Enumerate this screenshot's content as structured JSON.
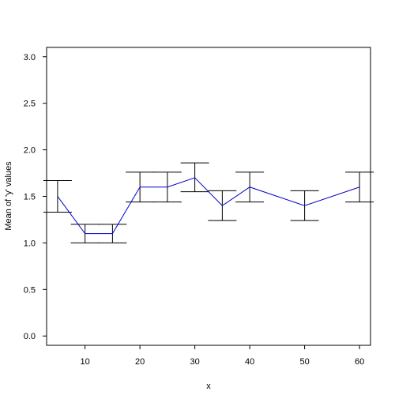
{
  "chart_data": {
    "type": "line",
    "xlabel": "x",
    "ylabel": "Mean of 'y' values",
    "x_ticks": [
      10,
      20,
      30,
      40,
      50,
      60
    ],
    "y_ticks": [
      "0.0",
      "0.5",
      "1.0",
      "1.5",
      "2.0",
      "2.5",
      "3.0"
    ],
    "xlim": [
      3,
      62
    ],
    "ylim": [
      -0.1,
      3.1
    ],
    "line_color": "#0000cc",
    "error_bar_color": "#000000",
    "grid": false,
    "series": [
      {
        "x": [
          5,
          10,
          15,
          20,
          25,
          30,
          35,
          40,
          50,
          60
        ],
        "y": [
          1.5,
          1.1,
          1.1,
          1.6,
          1.6,
          1.7,
          1.4,
          1.6,
          1.4,
          1.6
        ],
        "lower": [
          1.33,
          1.0,
          1.0,
          1.44,
          1.44,
          1.55,
          1.24,
          1.44,
          1.24,
          1.44
        ],
        "upper": [
          1.67,
          1.2,
          1.2,
          1.76,
          1.76,
          1.86,
          1.56,
          1.76,
          1.56,
          1.76
        ]
      }
    ]
  }
}
